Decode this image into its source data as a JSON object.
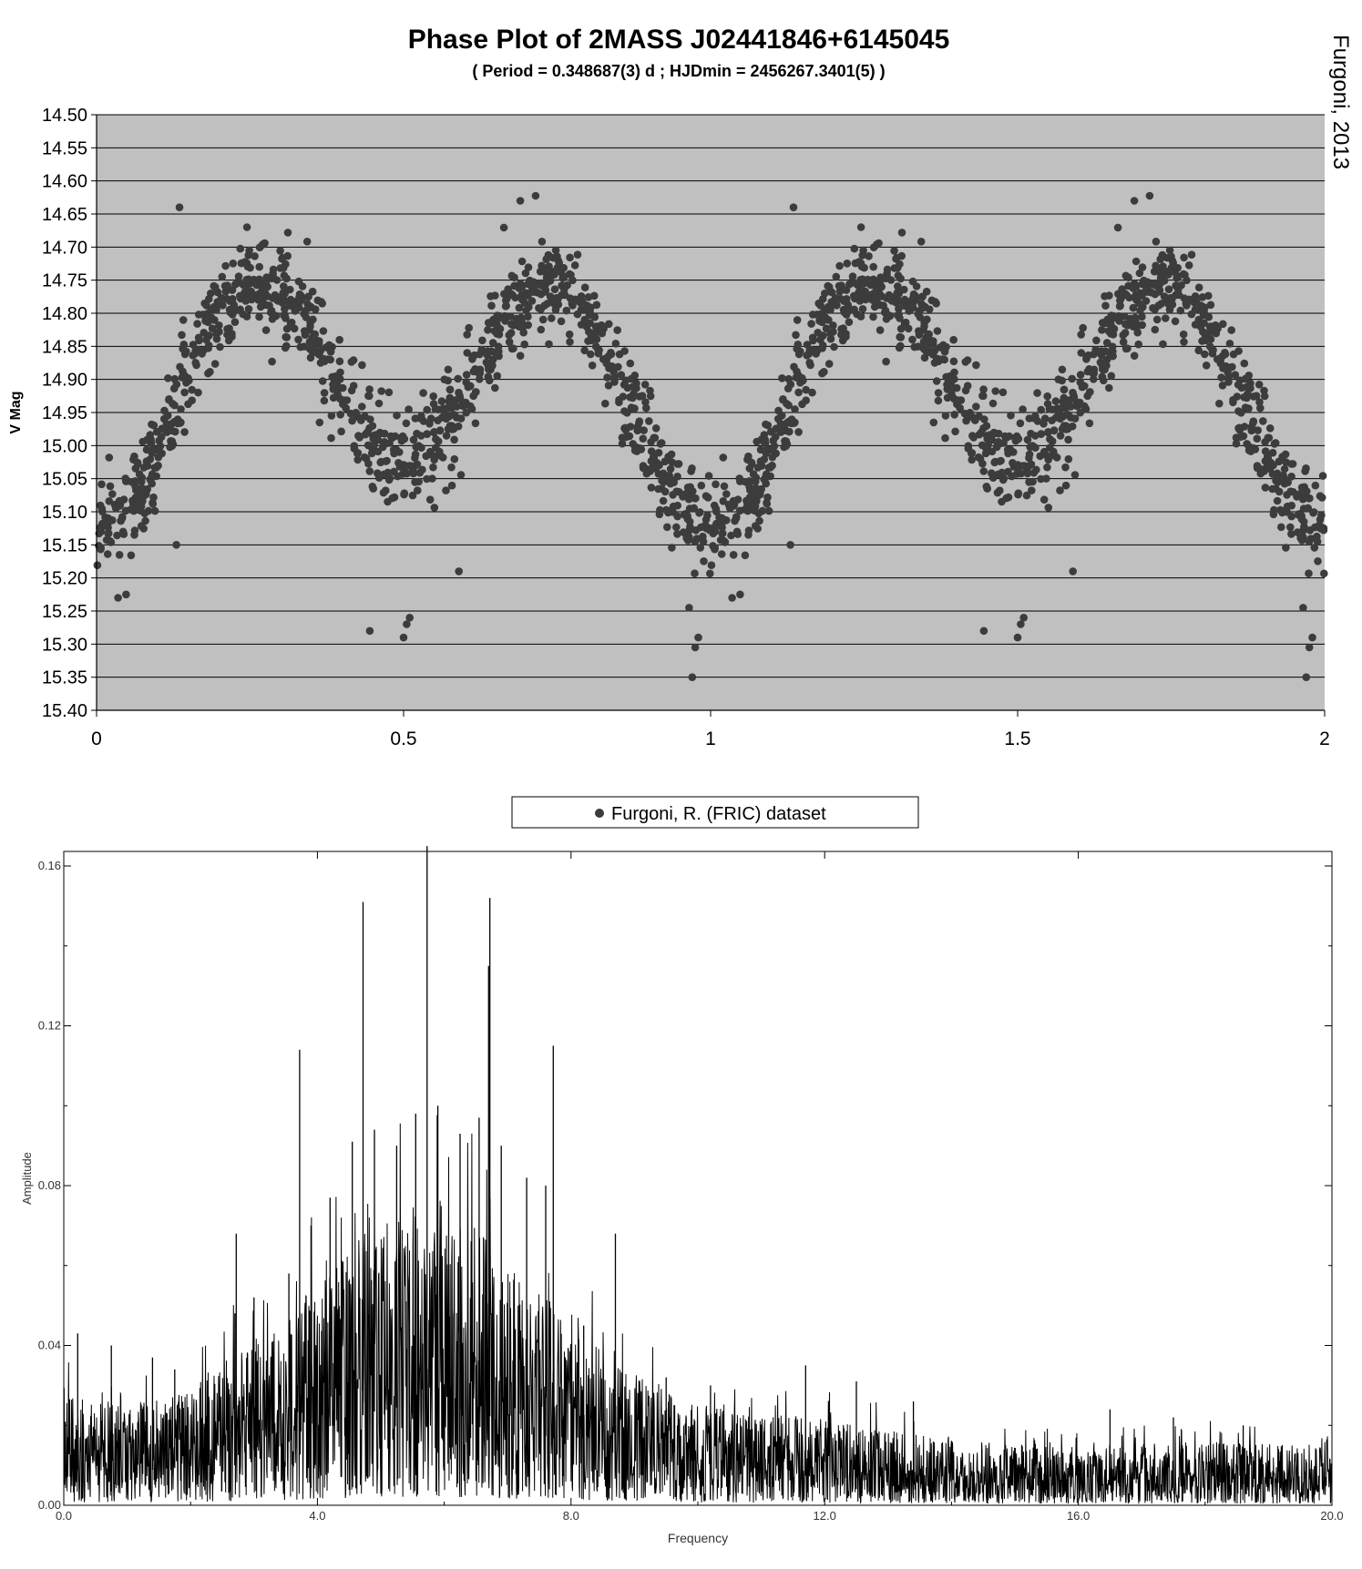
{
  "credit": "Furgoni, 2013",
  "chart_data": [
    {
      "type": "scatter",
      "title": "Phase Plot of 2MASS J02441846+6145045",
      "subtitle": "( Period = 0.348687(3) d ; HJDmin = 2456267.3401(5) )",
      "xlabel": "",
      "ylabel": "V Mag",
      "xlim": [
        0,
        2
      ],
      "ylim": [
        15.4,
        14.5
      ],
      "y_inverted": true,
      "x_ticks": [
        "0",
        "0.5",
        "1",
        "1.5",
        "2"
      ],
      "y_ticks": [
        "14.50",
        "14.55",
        "14.60",
        "14.65",
        "14.70",
        "14.75",
        "14.80",
        "14.85",
        "14.90",
        "14.95",
        "15.00",
        "15.05",
        "15.10",
        "15.15",
        "15.20",
        "15.25",
        "15.30",
        "15.35",
        "15.40"
      ],
      "grid": true,
      "plot_background": "#c0c0c0",
      "marker_color": "#3c3c3c",
      "legend": {
        "placement": "bottom-center",
        "label": "Furgoni, R. (FRIC) dataset"
      },
      "series": [
        {
          "name": "Furgoni, R. (FRIC) dataset",
          "model": {
            "phase_period": 1.0,
            "mean_mag": 14.915,
            "primary_amp": 0.155,
            "secondary_amp": 0.05,
            "scatter": 0.035,
            "point_count_per_cycle": 1100
          },
          "highlighted_points": [
            {
              "x": 0.135,
              "y": 14.64
            },
            {
              "x": 0.245,
              "y": 14.67
            },
            {
              "x": 0.69,
              "y": 14.63
            },
            {
              "x": 0.97,
              "y": 15.35
            },
            {
              "x": 0.975,
              "y": 15.305
            },
            {
              "x": 0.98,
              "y": 15.29
            },
            {
              "x": 0.965,
              "y": 15.245
            },
            {
              "x": 0.5,
              "y": 15.29
            },
            {
              "x": 0.505,
              "y": 15.27
            },
            {
              "x": 0.51,
              "y": 15.26
            },
            {
              "x": 0.445,
              "y": 15.28
            },
            {
              "x": 0.13,
              "y": 15.15
            },
            {
              "x": 0.59,
              "y": 15.19
            },
            {
              "x": 0.035,
              "y": 15.23
            },
            {
              "x": 0.048,
              "y": 15.225
            }
          ]
        }
      ]
    },
    {
      "type": "line",
      "title": "",
      "xlabel": "Frequency",
      "ylabel": "Amplitude",
      "xlim": [
        0,
        20
      ],
      "ylim": [
        0,
        0.16
      ],
      "x_ticks": [
        "0.0",
        "4.0",
        "8.0",
        "12.0",
        "16.0",
        "20.0"
      ],
      "y_ticks": [
        "0.00",
        "0.04",
        "0.08",
        "0.12",
        "0.16"
      ],
      "grid": false,
      "line_color": "#000000",
      "envelope": [
        {
          "x": 0.0,
          "y": 0.015
        },
        {
          "x": 1.0,
          "y": 0.014
        },
        {
          "x": 2.0,
          "y": 0.016
        },
        {
          "x": 2.8,
          "y": 0.022
        },
        {
          "x": 3.5,
          "y": 0.026
        },
        {
          "x": 4.2,
          "y": 0.033
        },
        {
          "x": 5.0,
          "y": 0.04
        },
        {
          "x": 5.7,
          "y": 0.042
        },
        {
          "x": 6.5,
          "y": 0.039
        },
        {
          "x": 7.2,
          "y": 0.033
        },
        {
          "x": 8.0,
          "y": 0.025
        },
        {
          "x": 9.0,
          "y": 0.018
        },
        {
          "x": 10.0,
          "y": 0.014
        },
        {
          "x": 12.0,
          "y": 0.012
        },
        {
          "x": 14.0,
          "y": 0.009
        },
        {
          "x": 16.0,
          "y": 0.008
        },
        {
          "x": 18.0,
          "y": 0.009
        },
        {
          "x": 20.0,
          "y": 0.008
        }
      ],
      "peaks": [
        {
          "x": 0.22,
          "y": 0.043
        },
        {
          "x": 0.75,
          "y": 0.04
        },
        {
          "x": 1.4,
          "y": 0.037
        },
        {
          "x": 1.75,
          "y": 0.034
        },
        {
          "x": 2.72,
          "y": 0.068
        },
        {
          "x": 2.7,
          "y": 0.048
        },
        {
          "x": 3.0,
          "y": 0.052
        },
        {
          "x": 3.55,
          "y": 0.058
        },
        {
          "x": 3.72,
          "y": 0.114
        },
        {
          "x": 3.9,
          "y": 0.07
        },
        {
          "x": 4.2,
          "y": 0.077
        },
        {
          "x": 4.55,
          "y": 0.091
        },
        {
          "x": 4.72,
          "y": 0.151
        },
        {
          "x": 4.9,
          "y": 0.094
        },
        {
          "x": 5.25,
          "y": 0.09
        },
        {
          "x": 5.55,
          "y": 0.098
        },
        {
          "x": 5.73,
          "y": 0.165
        },
        {
          "x": 5.9,
          "y": 0.1
        },
        {
          "x": 6.25,
          "y": 0.093
        },
        {
          "x": 6.55,
          "y": 0.097
        },
        {
          "x": 6.72,
          "y": 0.152
        },
        {
          "x": 6.7,
          "y": 0.135
        },
        {
          "x": 6.9,
          "y": 0.09
        },
        {
          "x": 7.3,
          "y": 0.082
        },
        {
          "x": 7.72,
          "y": 0.115
        },
        {
          "x": 7.6,
          "y": 0.08
        },
        {
          "x": 8.7,
          "y": 0.068
        },
        {
          "x": 8.2,
          "y": 0.045
        },
        {
          "x": 9.5,
          "y": 0.032
        },
        {
          "x": 10.2,
          "y": 0.03
        },
        {
          "x": 11.7,
          "y": 0.035
        },
        {
          "x": 12.5,
          "y": 0.031
        },
        {
          "x": 13.4,
          "y": 0.026
        },
        {
          "x": 16.5,
          "y": 0.024
        },
        {
          "x": 17.5,
          "y": 0.022
        },
        {
          "x": 18.6,
          "y": 0.02
        }
      ]
    }
  ]
}
